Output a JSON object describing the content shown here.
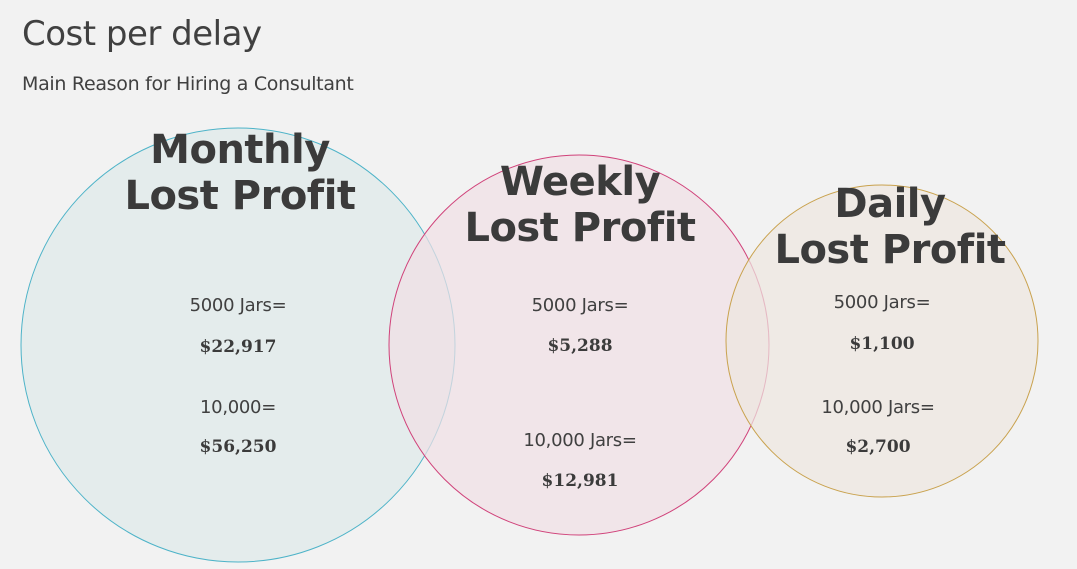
{
  "header": {
    "title": "Cost per delay",
    "subtitle": "Main Reason for Hiring a Consultant"
  },
  "circles": [
    {
      "heading_line1": "Monthly",
      "heading_line2": "Lost Profit",
      "label1": "5000 Jars=",
      "value1": "$22,917",
      "label2": "10,000=",
      "value2": "$56,250",
      "stroke": "#4db3c8",
      "fill": "#e0eaea"
    },
    {
      "heading_line1": "Weekly",
      "heading_line2": "Lost Profit",
      "label1": "5000 Jars=",
      "value1": "$5,288",
      "label2": "10,000 Jars=",
      "value2": "$12,981",
      "stroke": "#d0427a",
      "fill": "#f0dfe5"
    },
    {
      "heading_line1": "Daily",
      "heading_line2": "Lost Profit",
      "label1": "5000 Jars=",
      "value1": "$1,100",
      "label2": "10,000 Jars=",
      "value2": "$2,700",
      "stroke": "#c9a24e",
      "fill": "#ede6df"
    }
  ]
}
